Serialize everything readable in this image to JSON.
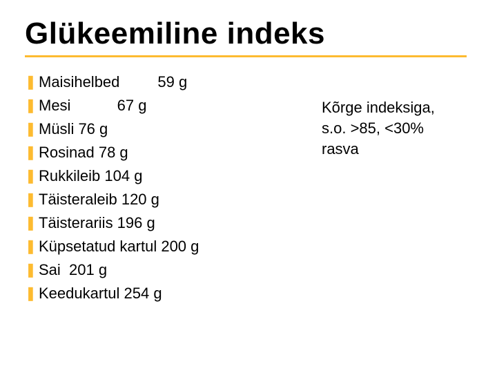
{
  "title": "Glükeemiline indeks",
  "accent_color": "#fdbb30",
  "bullet_color": "#fdbb30",
  "bullet_glyph": "❚",
  "items": [
    "Maisihelbed         59 g",
    "Mesi           67 g",
    "Müsli 76 g",
    "Rosinad 78 g",
    "Rukkileib 104 g",
    "Täisteraleib 120 g",
    "Täisterariis 196 g",
    "Küpsetatud kartul 200 g",
    "Sai  201 g",
    "Keedukartul 254 g"
  ],
  "side_note": [
    "Kõrge indeksiga,",
    "s.o. >85, <30%",
    "rasva"
  ]
}
